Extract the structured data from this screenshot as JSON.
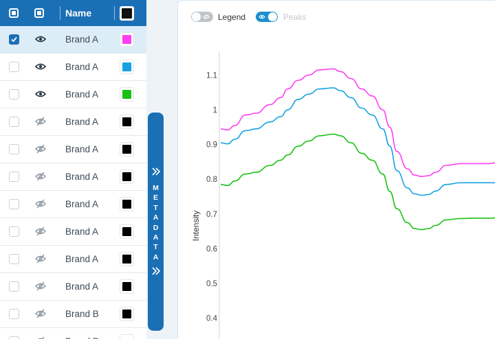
{
  "table": {
    "header": {
      "name_label": "Name"
    },
    "rows": [
      {
        "name": "Brand A",
        "checked": true,
        "visible": true,
        "color": "#ff3ff2"
      },
      {
        "name": "Brand A",
        "checked": false,
        "visible": true,
        "color": "#16a2e0"
      },
      {
        "name": "Brand A",
        "checked": false,
        "visible": true,
        "color": "#19c114"
      },
      {
        "name": "Brand A",
        "checked": false,
        "visible": false,
        "color": "#000000"
      },
      {
        "name": "Brand A",
        "checked": false,
        "visible": false,
        "color": "#000000"
      },
      {
        "name": "Brand A",
        "checked": false,
        "visible": false,
        "color": "#000000"
      },
      {
        "name": "Brand A",
        "checked": false,
        "visible": false,
        "color": "#000000"
      },
      {
        "name": "Brand A",
        "checked": false,
        "visible": false,
        "color": "#000000"
      },
      {
        "name": "Brand A",
        "checked": false,
        "visible": false,
        "color": "#000000"
      },
      {
        "name": "Brand A",
        "checked": false,
        "visible": false,
        "color": "#000000"
      },
      {
        "name": "Brand B",
        "checked": false,
        "visible": false,
        "color": "#000000"
      },
      {
        "name": "Brand B",
        "checked": false,
        "visible": false,
        "color": "#ffffff"
      }
    ]
  },
  "metadata_tab": {
    "label": "METADATA"
  },
  "toolbar": {
    "legend_label": "Legend",
    "legend_on": false,
    "peaks_label": "Peaks",
    "peaks_on": true
  },
  "colors": {
    "accent": "#1b6fb5",
    "toggle_on": "#1d8fd0",
    "toggle_off": "#bfc4c9"
  },
  "chart_data": {
    "type": "line",
    "ylabel": "Intensity",
    "xlabel": "",
    "yticks": [
      "1.1",
      "1",
      "0.9",
      "0.8",
      "0.7",
      "0.6",
      "0.5",
      "0.4"
    ],
    "ytick_values": [
      1.1,
      1.0,
      0.9,
      0.8,
      0.7,
      0.6,
      0.5,
      0.4
    ],
    "ylim": [
      0.35,
      1.2
    ],
    "xlim": [
      0,
      400
    ],
    "series": [
      {
        "color": "#ff3ff2",
        "x": [
          0,
          10,
          20,
          35,
          50,
          70,
          85,
          95,
          110,
          125,
          140,
          160,
          170,
          185,
          200,
          215,
          230,
          240,
          250,
          265,
          275,
          285,
          295,
          305,
          320,
          340,
          360,
          380,
          400
        ],
        "y": [
          0.945,
          0.942,
          0.955,
          0.985,
          0.99,
          1.015,
          1.035,
          1.06,
          1.085,
          1.1,
          1.115,
          1.118,
          1.11,
          1.09,
          1.06,
          1.04,
          1.0,
          0.95,
          0.88,
          0.83,
          0.812,
          0.808,
          0.81,
          0.82,
          0.84,
          0.845,
          0.845,
          0.845,
          0.85
        ]
      },
      {
        "color": "#16a2e0",
        "x": [
          0,
          10,
          20,
          35,
          50,
          70,
          85,
          95,
          110,
          125,
          140,
          160,
          170,
          185,
          200,
          215,
          230,
          240,
          250,
          265,
          275,
          285,
          295,
          305,
          320,
          340,
          360,
          380,
          400
        ],
        "y": [
          0.905,
          0.902,
          0.915,
          0.94,
          0.945,
          0.965,
          0.98,
          1.0,
          1.03,
          1.045,
          1.06,
          1.063,
          1.055,
          1.035,
          1.005,
          0.985,
          0.945,
          0.895,
          0.825,
          0.775,
          0.758,
          0.754,
          0.756,
          0.766,
          0.785,
          0.79,
          0.79,
          0.79,
          0.79
        ]
      },
      {
        "color": "#19c114",
        "x": [
          0,
          10,
          20,
          35,
          50,
          70,
          85,
          95,
          110,
          125,
          140,
          160,
          170,
          185,
          200,
          215,
          230,
          240,
          250,
          265,
          275,
          285,
          295,
          305,
          320,
          340,
          360,
          380,
          400
        ],
        "y": [
          0.785,
          0.782,
          0.795,
          0.815,
          0.82,
          0.84,
          0.855,
          0.87,
          0.895,
          0.91,
          0.925,
          0.93,
          0.925,
          0.905,
          0.875,
          0.855,
          0.815,
          0.765,
          0.715,
          0.675,
          0.658,
          0.655,
          0.658,
          0.667,
          0.683,
          0.687,
          0.688,
          0.688,
          0.69
        ]
      }
    ]
  }
}
